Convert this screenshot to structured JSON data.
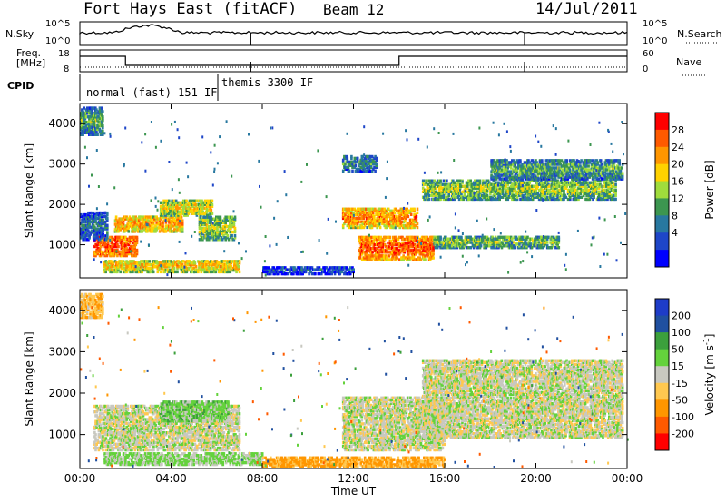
{
  "header": {
    "radar": "Fort Hays East (fitACF)",
    "beam": "Beam 12",
    "date": "14/Jul/2011"
  },
  "panels": {
    "nsky_label": "N.Sky",
    "nsky_ticks": [
      "10^5",
      "10^0"
    ],
    "nsearch_label": "N.Search",
    "nsearch_ticks": [
      "10^5",
      "10^0"
    ],
    "freq_label": "Freq.",
    "freq_unit": "[MHz]",
    "freq_ticks": [
      "18",
      "8"
    ],
    "nave_label": "Nave",
    "nave_ticks": [
      "60",
      "0"
    ],
    "cpid_label": "CPID",
    "cpid_modes": [
      "normal (fast) 151 IF",
      "themis 3300 IF"
    ]
  },
  "chart_data": [
    {
      "type": "heatmap",
      "name": "power",
      "ylabel": "Slant Range [km]",
      "yticks": [
        1000,
        2000,
        3000,
        4000
      ],
      "ylim": [
        180,
        4500
      ],
      "xticks": [
        "00:00",
        "04:00",
        "08:00",
        "12:00",
        "16:00",
        "20:00",
        "00:00"
      ],
      "xlim_hours": [
        0,
        24
      ],
      "colorbar": {
        "label": "Power [dB]",
        "ticks": [
          "28",
          "24",
          "20",
          "16",
          "12",
          "8",
          "4"
        ],
        "colors": [
          "#ff0000",
          "#ff5a00",
          "#ff9600",
          "#ffd200",
          "#a0dc3c",
          "#3c9650",
          "#2878a0",
          "#1e46c8",
          "#0000ff"
        ]
      },
      "regions": [
        {
          "t0": 0.6,
          "t1": 2.5,
          "r0": 700,
          "r1": 1200,
          "level": 27
        },
        {
          "t0": 1.5,
          "t1": 4.5,
          "r0": 1300,
          "r1": 1700,
          "level": 22
        },
        {
          "t0": 3.5,
          "t1": 5.8,
          "r0": 1700,
          "r1": 2100,
          "level": 18
        },
        {
          "t0": 5.2,
          "t1": 6.8,
          "r0": 1100,
          "r1": 1700,
          "level": 16
        },
        {
          "t0": 1.0,
          "t1": 7.0,
          "r0": 300,
          "r1": 600,
          "level": 20
        },
        {
          "t0": 11.5,
          "t1": 14.8,
          "r0": 1400,
          "r1": 1900,
          "level": 23
        },
        {
          "t0": 12.2,
          "t1": 15.5,
          "r0": 600,
          "r1": 1200,
          "level": 26
        },
        {
          "t0": 15.5,
          "t1": 21.0,
          "r0": 900,
          "r1": 1200,
          "level": 14
        },
        {
          "t0": 15.0,
          "t1": 23.5,
          "r0": 2100,
          "r1": 2600,
          "level": 15
        },
        {
          "t0": 18.0,
          "t1": 23.8,
          "r0": 2600,
          "r1": 3100,
          "level": 12
        },
        {
          "t0": 11.5,
          "t1": 13.0,
          "r0": 2800,
          "r1": 3200,
          "level": 10
        },
        {
          "t0": 0.0,
          "t1": 1.0,
          "r0": 3700,
          "r1": 4400,
          "level": 12
        },
        {
          "t0": 0.0,
          "t1": 1.2,
          "r0": 1100,
          "r1": 1800,
          "level": 8
        },
        {
          "t0": 8.0,
          "t1": 12.0,
          "r0": 250,
          "r1": 450,
          "level": 6
        }
      ]
    },
    {
      "type": "heatmap",
      "name": "velocity",
      "ylabel": "Slant Range [km]",
      "yticks": [
        1000,
        2000,
        3000,
        4000
      ],
      "ylim": [
        180,
        4500
      ],
      "xticks": [
        "00:00",
        "04:00",
        "08:00",
        "12:00",
        "16:00",
        "20:00",
        "00:00"
      ],
      "xlabel": "Time UT",
      "xlim_hours": [
        0,
        24
      ],
      "colorbar": {
        "label": "Velocity [m s",
        "label_sup": "-1",
        "label_end": "]",
        "ticks": [
          "200",
          "100",
          "50",
          "15",
          "-15",
          "-50",
          "-100",
          "-200"
        ],
        "colors": [
          "#1e3cc8",
          "#2050a0",
          "#3ca03c",
          "#64d23c",
          "#c8c8c0",
          "#ffc850",
          "#ff9600",
          "#ff5a00",
          "#ff0000"
        ]
      },
      "regions": [
        {
          "t0": 0.6,
          "t1": 7.0,
          "r0": 600,
          "r1": 1700,
          "level": 0
        },
        {
          "t0": 3.5,
          "t1": 6.5,
          "r0": 1300,
          "r1": 1800,
          "level": 30
        },
        {
          "t0": 1.0,
          "t1": 8.0,
          "r0": 250,
          "r1": 550,
          "level": 20
        },
        {
          "t0": 8.0,
          "t1": 16.0,
          "r0": 200,
          "r1": 450,
          "level": -60
        },
        {
          "t0": 11.5,
          "t1": 16.0,
          "r0": 600,
          "r1": 1900,
          "level": 0
        },
        {
          "t0": 15.0,
          "t1": 23.8,
          "r0": 900,
          "r1": 2800,
          "level": 0
        },
        {
          "t0": 0.0,
          "t1": 1.0,
          "r0": 3800,
          "r1": 4400,
          "level": -40
        }
      ]
    }
  ]
}
